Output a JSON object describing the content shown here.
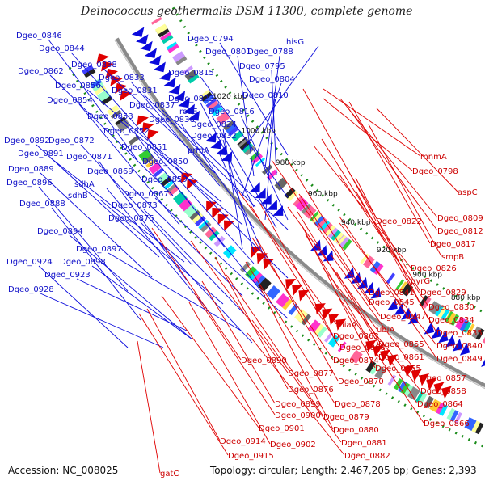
{
  "title": "Deinococcus geothermalis DSM 11300, complete genome",
  "accession": "Accession: NC_008025",
  "summary": "Topology: circular; Length: 2,467,205 bp; Genes: 2,393",
  "colors": {
    "forward": "#0a0adc",
    "reverse": "#e00000",
    "backbone": "#8a8a8a",
    "dots": "#1a8c1a"
  },
  "kbp_ticks": [
    "840 kbp",
    "860 kbp",
    "880 kbp",
    "900 kbp",
    "920 kbp",
    "940 kbp",
    "960 kbp",
    "980 kbp",
    "1000 kbp",
    "1020 kbp"
  ],
  "forward_genes": [
    "Dgeo_0846",
    "Dgeo_0844",
    "Dgeo_0838",
    "Dgeo_0862",
    "Dgeo_0856",
    "Dgeo_0833",
    "Dgeo_0854",
    "Dgeo_0831",
    "Dgeo_0853",
    "Dgeo_0837",
    "Dgeo_0852",
    "Dgeo_0836",
    "Dgeo_0872",
    "Dgeo_0892",
    "Dgeo_0891",
    "Dgeo_0871",
    "Dgeo_0851",
    "Dgeo_0889",
    "Dgeo_0869",
    "Dgeo_0850",
    "Dgeo_0896",
    "sdhA",
    "Dgeo_0859",
    "sdhB",
    "Dgeo_0867",
    "Dgeo_0888",
    "Dgeo_0873",
    "Dgeo_0875",
    "Dgeo_0894",
    "Dgeo_0897",
    "Dgeo_0924",
    "Dgeo_0898",
    "Dgeo_0923",
    "Dgeo_0928",
    "Dgeo_0794",
    "hisG",
    "Dgeo_0801",
    "Dgeo_0788",
    "Dgeo_0795",
    "Dgeo_0815",
    "Dgeo_0804",
    "Dgeo_0823",
    "Dgeo_0810",
    "roaE",
    "Dgeo_0816",
    "Dgeo_0824",
    "Dgeo_0832",
    "prmA"
  ],
  "reverse_genes": [
    "mnmA",
    "Dgeo_0798",
    "aspC",
    "Dgeo_0822",
    "Dgeo_0809",
    "Dgeo_0812",
    "Dgeo_0817",
    "smpB",
    "Dgeo_0826",
    "pyrG",
    "Dgeo_0841",
    "Dgeo_0829",
    "Dgeo_0845",
    "Dgeo_0830",
    "Dgeo_0847",
    "Dgeo_0834",
    "miaA",
    "ubiA",
    "Dgeo_0835",
    "Dgeo_0863",
    "Dgeo_0840",
    "Dgeo_0868",
    "Dgeo_0855",
    "Dgeo_0861",
    "Dgeo_0849",
    "Dgeo_0890",
    "Dgeo_0874",
    "Dgeo_0865",
    "Dgeo_0877",
    "Dgeo_0857",
    "Dgeo_0870",
    "Dgeo_0876",
    "Dgeo_0858",
    "Dgeo_0878",
    "Dgeo_0864",
    "Dgeo_0899",
    "Dgeo_0879",
    "Dgeo_0866",
    "Dgeo_0900",
    "Dgeo_0880",
    "Dgeo_0901",
    "Dgeo_0881",
    "Dgeo_0902",
    "Dgeo_0914",
    "Dgeo_0882",
    "Dgeo_0915",
    "gatC"
  ]
}
